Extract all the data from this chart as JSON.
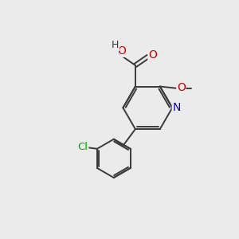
{
  "background_color": "#ebebeb",
  "bond_color": "#3a3a3a",
  "atom_colors": {
    "N": "#0000cc",
    "O": "#cc0000",
    "Cl": "#00aa00",
    "C": "#3a3a3a",
    "H": "#3a3a3a"
  },
  "figsize": [
    3.0,
    3.0
  ],
  "dpi": 100
}
